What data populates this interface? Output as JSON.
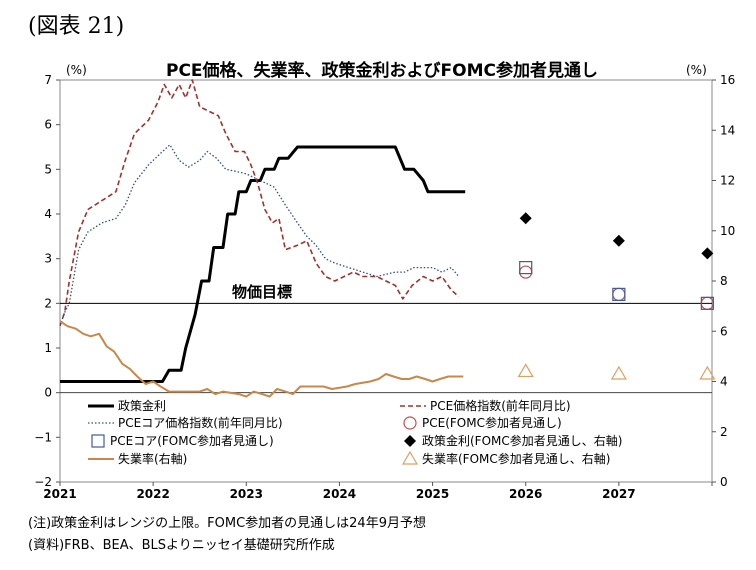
{
  "figure_label": "(図表 21)",
  "notes": {
    "note1": "(注)政策金利はレンジの上限。FOMC参加者の見通しは24年9月予想",
    "source": "(資料)FRB、BEA、BLSよりニッセイ基礎研究所作成"
  },
  "chart_data": {
    "type": "line",
    "title": "PCE価格、失業率、政策金利およびFOMC参加者見通し",
    "left_unit": "(%)",
    "right_unit": "(%)",
    "ylim_left": [
      -2,
      7
    ],
    "ylim_right": [
      0,
      16
    ],
    "yticks_left": [
      "7",
      "6",
      "5",
      "4",
      "3",
      "2",
      "1",
      "0",
      "−1",
      "−2"
    ],
    "yticks_right": [
      "16",
      "14",
      "12",
      "10",
      "8",
      "6",
      "4",
      "2",
      "0"
    ],
    "xlim": [
      2021,
      2028
    ],
    "xticks": [
      "2021",
      "2022",
      "2023",
      "2024",
      "2025",
      "2026",
      "2027"
    ],
    "grid": false,
    "annotation": "物価目標",
    "annotation_level": 2,
    "colors": {
      "policy_rate": "#000000",
      "pce": "#a0322d",
      "core_pce": "#2f4f8f",
      "unemployment": "#c8884a"
    },
    "series": [
      {
        "name": "政策金利",
        "axis": "left",
        "style": "solid-thick",
        "points": [
          [
            2021.0,
            0.25
          ],
          [
            2022.1,
            0.25
          ],
          [
            2022.17,
            0.5
          ],
          [
            2022.3,
            0.5
          ],
          [
            2022.35,
            1.0
          ],
          [
            2022.45,
            1.75
          ],
          [
            2022.52,
            2.5
          ],
          [
            2022.6,
            2.5
          ],
          [
            2022.65,
            3.25
          ],
          [
            2022.75,
            3.25
          ],
          [
            2022.8,
            4.0
          ],
          [
            2022.88,
            4.0
          ],
          [
            2022.92,
            4.5
          ],
          [
            2023.0,
            4.5
          ],
          [
            2023.05,
            4.75
          ],
          [
            2023.15,
            4.75
          ],
          [
            2023.2,
            5.0
          ],
          [
            2023.3,
            5.0
          ],
          [
            2023.35,
            5.25
          ],
          [
            2023.45,
            5.25
          ],
          [
            2023.55,
            5.5
          ],
          [
            2024.6,
            5.5
          ],
          [
            2024.7,
            5.0
          ],
          [
            2024.8,
            5.0
          ],
          [
            2024.9,
            4.75
          ],
          [
            2024.95,
            4.5
          ],
          [
            2025.35,
            4.5
          ]
        ]
      },
      {
        "name": "PCE価格指数(前年同月比)",
        "axis": "left",
        "style": "dashed",
        "points": [
          [
            2021.0,
            1.5
          ],
          [
            2021.05,
            1.8
          ],
          [
            2021.1,
            2.5
          ],
          [
            2021.2,
            3.6
          ],
          [
            2021.3,
            4.1
          ],
          [
            2021.45,
            4.3
          ],
          [
            2021.6,
            4.5
          ],
          [
            2021.7,
            5.2
          ],
          [
            2021.8,
            5.8
          ],
          [
            2021.95,
            6.1
          ],
          [
            2022.05,
            6.5
          ],
          [
            2022.12,
            6.9
          ],
          [
            2022.2,
            6.6
          ],
          [
            2022.28,
            6.9
          ],
          [
            2022.35,
            6.6
          ],
          [
            2022.42,
            7.0
          ],
          [
            2022.5,
            6.4
          ],
          [
            2022.6,
            6.3
          ],
          [
            2022.7,
            6.2
          ],
          [
            2022.78,
            5.8
          ],
          [
            2022.88,
            5.4
          ],
          [
            2022.98,
            5.4
          ],
          [
            2023.05,
            5.1
          ],
          [
            2023.12,
            4.7
          ],
          [
            2023.2,
            4.1
          ],
          [
            2023.28,
            3.8
          ],
          [
            2023.35,
            3.9
          ],
          [
            2023.42,
            3.2
          ],
          [
            2023.55,
            3.3
          ],
          [
            2023.65,
            3.4
          ],
          [
            2023.75,
            2.9
          ],
          [
            2023.85,
            2.6
          ],
          [
            2023.95,
            2.5
          ],
          [
            2024.05,
            2.6
          ],
          [
            2024.15,
            2.7
          ],
          [
            2024.25,
            2.6
          ],
          [
            2024.4,
            2.6
          ],
          [
            2024.5,
            2.5
          ],
          [
            2024.6,
            2.4
          ],
          [
            2024.68,
            2.1
          ],
          [
            2024.78,
            2.4
          ],
          [
            2024.9,
            2.6
          ],
          [
            2025.0,
            2.5
          ],
          [
            2025.1,
            2.6
          ],
          [
            2025.2,
            2.3
          ],
          [
            2025.28,
            2.15
          ]
        ]
      },
      {
        "name": "PCEコア価格指数(前年同月比)",
        "axis": "left",
        "style": "dotted",
        "points": [
          [
            2021.0,
            1.5
          ],
          [
            2021.05,
            1.8
          ],
          [
            2021.1,
            2.0
          ],
          [
            2021.2,
            3.2
          ],
          [
            2021.3,
            3.6
          ],
          [
            2021.45,
            3.8
          ],
          [
            2021.6,
            3.9
          ],
          [
            2021.7,
            4.2
          ],
          [
            2021.8,
            4.7
          ],
          [
            2021.95,
            5.1
          ],
          [
            2022.1,
            5.4
          ],
          [
            2022.18,
            5.55
          ],
          [
            2022.28,
            5.2
          ],
          [
            2022.38,
            5.05
          ],
          [
            2022.5,
            5.2
          ],
          [
            2022.58,
            5.4
          ],
          [
            2022.68,
            5.25
          ],
          [
            2022.78,
            5.0
          ],
          [
            2022.9,
            4.95
          ],
          [
            2023.0,
            4.9
          ],
          [
            2023.1,
            4.8
          ],
          [
            2023.2,
            4.7
          ],
          [
            2023.3,
            4.6
          ],
          [
            2023.42,
            4.2
          ],
          [
            2023.55,
            3.8
          ],
          [
            2023.65,
            3.5
          ],
          [
            2023.75,
            3.3
          ],
          [
            2023.85,
            3.0
          ],
          [
            2023.95,
            2.9
          ],
          [
            2024.1,
            2.8
          ],
          [
            2024.25,
            2.7
          ],
          [
            2024.4,
            2.6
          ],
          [
            2024.5,
            2.65
          ],
          [
            2024.6,
            2.7
          ],
          [
            2024.7,
            2.7
          ],
          [
            2024.8,
            2.8
          ],
          [
            2024.9,
            2.8
          ],
          [
            2025.0,
            2.8
          ],
          [
            2025.1,
            2.7
          ],
          [
            2025.2,
            2.8
          ],
          [
            2025.28,
            2.6
          ]
        ]
      },
      {
        "name": "失業率(右軸)",
        "axis": "right",
        "style": "solid",
        "points": [
          [
            2021.0,
            6.4
          ],
          [
            2021.08,
            6.2
          ],
          [
            2021.17,
            6.1
          ],
          [
            2021.25,
            5.9
          ],
          [
            2021.33,
            5.8
          ],
          [
            2021.42,
            5.9
          ],
          [
            2021.5,
            5.4
          ],
          [
            2021.58,
            5.2
          ],
          [
            2021.67,
            4.7
          ],
          [
            2021.75,
            4.5
          ],
          [
            2021.83,
            4.2
          ],
          [
            2021.92,
            3.9
          ],
          [
            2022.0,
            4.0
          ],
          [
            2022.08,
            3.8
          ],
          [
            2022.17,
            3.6
          ],
          [
            2022.5,
            3.6
          ],
          [
            2022.58,
            3.7
          ],
          [
            2022.67,
            3.5
          ],
          [
            2022.75,
            3.6
          ],
          [
            2022.92,
            3.5
          ],
          [
            2023.0,
            3.4
          ],
          [
            2023.08,
            3.6
          ],
          [
            2023.17,
            3.5
          ],
          [
            2023.25,
            3.4
          ],
          [
            2023.33,
            3.7
          ],
          [
            2023.42,
            3.6
          ],
          [
            2023.5,
            3.5
          ],
          [
            2023.58,
            3.8
          ],
          [
            2023.83,
            3.8
          ],
          [
            2023.92,
            3.7
          ],
          [
            2024.08,
            3.8
          ],
          [
            2024.17,
            3.9
          ],
          [
            2024.33,
            4.0
          ],
          [
            2024.42,
            4.1
          ],
          [
            2024.5,
            4.3
          ],
          [
            2024.58,
            4.2
          ],
          [
            2024.67,
            4.1
          ],
          [
            2024.75,
            4.1
          ],
          [
            2024.83,
            4.2
          ],
          [
            2024.92,
            4.1
          ],
          [
            2025.0,
            4.0
          ],
          [
            2025.08,
            4.1
          ],
          [
            2025.17,
            4.2
          ],
          [
            2025.33,
            4.2
          ]
        ]
      },
      {
        "name": "PCE(FOMC参加者見通し)",
        "axis": "left",
        "marker": "open-circle",
        "points": [
          [
            2026.0,
            2.7
          ],
          [
            2027.0,
            2.2
          ],
          [
            2027.95,
            2.0
          ]
        ]
      },
      {
        "name": "PCEコア(FOMC参加者見通し)",
        "axis": "left",
        "marker": "open-square",
        "points": [
          [
            2026.0,
            2.8
          ],
          [
            2027.0,
            2.2
          ],
          [
            2027.95,
            2.0
          ]
        ]
      },
      {
        "name": "政策金利(FOMC参加者見通し、右軸)",
        "axis": "right",
        "marker": "filled-diamond",
        "points": [
          [
            2026.0,
            10.5
          ],
          [
            2027.0,
            9.6
          ],
          [
            2027.95,
            9.1
          ]
        ]
      },
      {
        "name": "失業率(FOMC参加者見通し、右軸)",
        "axis": "right",
        "marker": "open-triangle",
        "points": [
          [
            2026.0,
            4.4
          ],
          [
            2027.0,
            4.3
          ],
          [
            2027.95,
            4.3
          ]
        ]
      }
    ],
    "legend": {
      "placement": "bottom-inside",
      "items": [
        {
          "key": "政策金利",
          "label": "政策金利",
          "sym": "line-thick"
        },
        {
          "key": "PCE価格指数(前年同月比)",
          "label": "PCE価格指数(前年同月比)",
          "sym": "line-dashed"
        },
        {
          "key": "PCEコア価格指数(前年同月比)",
          "label": "PCEコア価格指数(前年同月比)",
          "sym": "line-dotted"
        },
        {
          "key": "PCE(FOMC参加者見通し)",
          "label": "PCE(FOMC参加者見通し)",
          "sym": "circle"
        },
        {
          "key": "PCEコア(FOMC参加者見通し)",
          "label": "PCEコア(FOMC参加者見通し)",
          "sym": "square"
        },
        {
          "key": "政策金利(FOMC参加者見通し、右軸)",
          "label": "政策金利(FOMC参加者見通し、右軸)",
          "sym": "diamond"
        },
        {
          "key": "失業率(右軸)",
          "label": "失業率(右軸)",
          "sym": "line-unemp"
        },
        {
          "key": "失業率(FOMC参加者見通し、右軸)",
          "label": "失業率(FOMC参加者見通し、右軸)",
          "sym": "triangle"
        }
      ]
    }
  }
}
